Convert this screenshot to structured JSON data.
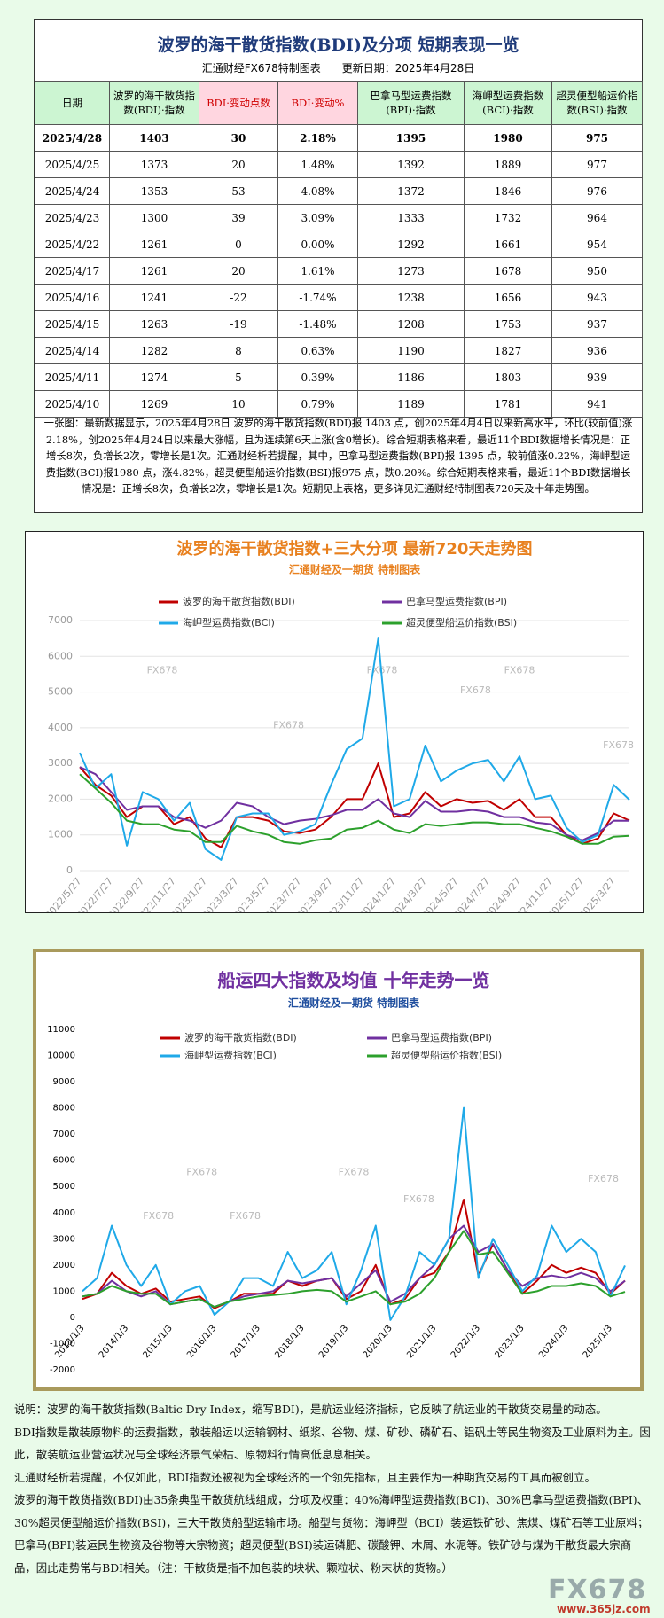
{
  "header": {
    "title": "波罗的海干散货指数(BDI)及分项 短期表现一览",
    "subtitle_left": "汇通财经FX678特制图表",
    "subtitle_right": "更新日期：2025年4月28日"
  },
  "table": {
    "header": [
      "日期",
      "波罗的海干散货指数(BDI)·指数",
      "BDI·变动点数",
      "BDI·变动%",
      "巴拿马型运费指数(BPI)·指数",
      "海岬型运费指数(BCI)·指数",
      "超灵便型船运价指数(BSI)·指数"
    ],
    "rows": [
      [
        "2025/4/28",
        "1403",
        "30",
        "2.18%",
        "1395",
        "1980",
        "975"
      ],
      [
        "2025/4/25",
        "1373",
        "20",
        "1.48%",
        "1392",
        "1889",
        "977"
      ],
      [
        "2025/4/24",
        "1353",
        "53",
        "4.08%",
        "1372",
        "1846",
        "976"
      ],
      [
        "2025/4/23",
        "1300",
        "39",
        "3.09%",
        "1333",
        "1732",
        "964"
      ],
      [
        "2025/4/22",
        "1261",
        "0",
        "0.00%",
        "1292",
        "1661",
        "954"
      ],
      [
        "2025/4/17",
        "1261",
        "20",
        "1.61%",
        "1273",
        "1678",
        "950"
      ],
      [
        "2025/4/16",
        "1241",
        "-22",
        "-1.74%",
        "1238",
        "1656",
        "943"
      ],
      [
        "2025/4/15",
        "1263",
        "-19",
        "-1.48%",
        "1208",
        "1753",
        "937"
      ],
      [
        "2025/4/14",
        "1282",
        "8",
        "0.63%",
        "1190",
        "1827",
        "936"
      ],
      [
        "2025/4/11",
        "1274",
        "5",
        "0.39%",
        "1186",
        "1803",
        "939"
      ],
      [
        "2025/4/10",
        "1269",
        "10",
        "0.79%",
        "1189",
        "1781",
        "941"
      ]
    ]
  },
  "note": "一张图：最新数据显示，2025年4月28日 波罗的海干散货指数(BDI)报 1403 点，创2025年4月4日以来新高水平，环比(较前值)涨2.18%，创2025年4月24日以来最大涨幅，且为连续第6天上涨(含0增长)。综合短期表格来看，最近11个BDI数据增长情况是：正增长8次，负增长2次，零增长是1次。汇通财经析若提醒，其中，巴拿马型运费指数(BPI)报 1395 点，较前值涨0.22%，海岬型运费指数(BCI)报1980 点，涨4.82%，超灵便型船运价指数(BSI)报975 点，跌0.20%。综合短期表格来看，最近11个BDI数据增长情况是：正增长8次，负增长2次，零增长是1次。短期见上表格，更多详见汇通财经特制图表720天及十年走势图。",
  "chart_data": [
    {
      "type": "line",
      "title": "波罗的海干散货指数+三大分项  最新720天走势图",
      "subtitle": "汇通财经及一期货  特制图表",
      "grid": true,
      "categories": [
        "2022/5/27",
        null,
        "2022/7/27",
        null,
        "2022/9/27",
        null,
        "2022/11/27",
        null,
        "2023/1/27",
        null,
        "2023/3/27",
        null,
        "2023/5/27",
        null,
        "2023/7/27",
        null,
        "2023/9/27",
        null,
        "2023/11/27",
        null,
        "2024/1/27",
        null,
        "2024/3/27",
        null,
        "2024/5/27",
        null,
        "2024/7/27",
        null,
        "2024/9/27",
        null,
        "2024/11/27",
        null,
        "2025/1/27",
        null,
        "2025/3/27",
        null
      ],
      "ylim": [
        0,
        7000
      ],
      "yticks": [
        0,
        1000,
        2000,
        3000,
        4000,
        5000,
        6000,
        7000
      ],
      "annotations": [
        "FX678",
        "FX678",
        "FX678",
        "FX678",
        "FX678",
        "FX678"
      ],
      "series": [
        {
          "name": "波罗的海干散货指数(BDI)",
          "color": "#c00000",
          "values": [
            2900,
            2400,
            2100,
            1500,
            1800,
            1800,
            1300,
            1500,
            900,
            650,
            1500,
            1500,
            1400,
            1100,
            1050,
            1150,
            1500,
            2000,
            2000,
            3000,
            1500,
            1600,
            2200,
            1800,
            2000,
            1900,
            1950,
            1700,
            2000,
            1500,
            1500,
            1000,
            750,
            900,
            1600,
            1403
          ]
        },
        {
          "name": "巴拿马型运费指数(BPI)",
          "color": "#7030a0",
          "values": [
            2900,
            2700,
            2200,
            1700,
            1800,
            1800,
            1500,
            1400,
            1200,
            1400,
            1900,
            1800,
            1500,
            1300,
            1400,
            1450,
            1550,
            1700,
            1700,
            2000,
            1600,
            1500,
            1950,
            1650,
            1650,
            1700,
            1650,
            1500,
            1500,
            1350,
            1300,
            1000,
            850,
            1050,
            1400,
            1395
          ]
        },
        {
          "name": "海岬型运费指数(BCI)",
          "color": "#1fa9e8",
          "values": [
            3300,
            2300,
            2700,
            700,
            2200,
            2000,
            1400,
            1900,
            600,
            300,
            1500,
            1600,
            1600,
            1000,
            1100,
            1300,
            2400,
            3400,
            3700,
            6500,
            1800,
            2000,
            3500,
            2500,
            2800,
            3000,
            3100,
            2500,
            3200,
            2000,
            2100,
            1200,
            800,
            1000,
            2400,
            1980
          ]
        },
        {
          "name": "超灵便型船运价指数(BSI)",
          "color": "#2ca02c",
          "values": [
            2700,
            2300,
            1900,
            1400,
            1300,
            1300,
            1150,
            1100,
            800,
            800,
            1250,
            1100,
            1000,
            800,
            750,
            850,
            900,
            1150,
            1200,
            1400,
            1150,
            1050,
            1300,
            1250,
            1300,
            1350,
            1350,
            1300,
            1300,
            1200,
            1100,
            950,
            750,
            750,
            950,
            975
          ]
        }
      ]
    },
    {
      "type": "line",
      "title": "船运四大指数及均值 十年走势一览",
      "subtitle": "汇通财经及一期货 特制图表",
      "grid": false,
      "categories": [
        "2013/1/3",
        null,
        null,
        "2014/1/3",
        null,
        null,
        "2015/1/3",
        null,
        null,
        "2016/1/3",
        null,
        null,
        "2017/1/3",
        null,
        null,
        "2018/1/3",
        null,
        null,
        "2019/1/3",
        null,
        null,
        "2020/1/3",
        null,
        null,
        "2021/1/3",
        null,
        null,
        "2022/1/3",
        null,
        null,
        "2023/1/3",
        null,
        null,
        "2024/1/3",
        null,
        null,
        "2025/1/3",
        null
      ],
      "ylim": [
        -2000,
        11000
      ],
      "yticks": [
        -2000,
        -1000,
        0,
        1000,
        2000,
        3000,
        4000,
        5000,
        6000,
        7000,
        8000,
        9000,
        10000,
        11000
      ],
      "annotations": [
        "FX678",
        "FX678",
        "FX678",
        "FX678",
        "FX678",
        "FX678"
      ],
      "series": [
        {
          "name": "波罗的海干散货指数(BDI)",
          "color": "#c00000",
          "values": [
            700,
            900,
            1700,
            1200,
            900,
            1100,
            600,
            700,
            800,
            350,
            600,
            900,
            900,
            900,
            1400,
            1200,
            1400,
            1500,
            700,
            1000,
            2000,
            500,
            700,
            1500,
            1700,
            2500,
            4500,
            1600,
            2800,
            1800,
            900,
            1400,
            2000,
            1700,
            1900,
            1700,
            900,
            1403
          ]
        },
        {
          "name": "巴拿马型运费指数(BPI)",
          "color": "#7030a0",
          "values": [
            800,
            900,
            1400,
            1000,
            800,
            1000,
            500,
            600,
            700,
            400,
            600,
            800,
            900,
            1000,
            1400,
            1300,
            1400,
            1500,
            800,
            1300,
            1800,
            600,
            900,
            1500,
            2000,
            3000,
            3500,
            2500,
            2800,
            1800,
            1200,
            1500,
            1600,
            1500,
            1700,
            1500,
            1000,
            1395
          ]
        },
        {
          "name": "海岬型运费指数(BCI)",
          "color": "#1fa9e8",
          "values": [
            1000,
            1500,
            3500,
            2000,
            1200,
            2000,
            500,
            1000,
            1200,
            100,
            600,
            1500,
            1500,
            1200,
            2500,
            1500,
            1800,
            2500,
            500,
            1800,
            3500,
            -100,
            800,
            2500,
            2000,
            3000,
            8000,
            1500,
            3000,
            2000,
            1000,
            1600,
            3500,
            2500,
            3000,
            2500,
            800,
            1980
          ]
        },
        {
          "name": "超灵便型船运价指数(BSI)",
          "color": "#2ca02c",
          "values": [
            800,
            900,
            1200,
            1000,
            900,
            900,
            500,
            600,
            700,
            400,
            600,
            700,
            800,
            850,
            900,
            1000,
            1050,
            1000,
            600,
            800,
            1000,
            500,
            600,
            900,
            1500,
            2500,
            3300,
            2400,
            2500,
            1700,
            900,
            1000,
            1200,
            1200,
            1300,
            1200,
            800,
            975
          ]
        }
      ]
    }
  ],
  "explanation": [
    "说明：波罗的海干散货指数(Baltic Dry Index，缩写BDI)，是航运业经济指标，它反映了航运业的干散货交易量的动态。",
    "BDI指数是散装原物料的运费指数，散装船运以运输钢材、纸浆、谷物、煤、矿砂、磷矿石、铝矾土等民生物资及工业原料为主。因此，散装航运业营运状况与全球经济景气荣枯、原物料行情高低息息相关。",
    "汇通财经析若提醒，不仅如此，BDI指数还被视为全球经济的一个领先指标，且主要作为一种期货交易的工具而被创立。",
    "波罗的海干散货指数(BDI)由35条典型干散货航线组成，分项及权重：40%海岬型运费指数(BCI)、30%巴拿马型运费指数(BPI)、30%超灵便型船运价指数(BSI)，三大干散货船型运输市场。船型与货物：海岬型（BCI）装运铁矿砂、焦煤、煤矿石等工业原料；巴拿马(BPI)装运民生物资及谷物等大宗物资；超灵便型(BSI)装运磷肥、碳酸钾、木屑、水泥等。铁矿砂与煤为干散货最大宗商品，因此走势常与BDI相关。（注：干散货是指不加包装的块状、颗粒状、粉末状的货物。）"
  ],
  "footer": {
    "logo": "FX678",
    "url": "www.365jz.com"
  }
}
